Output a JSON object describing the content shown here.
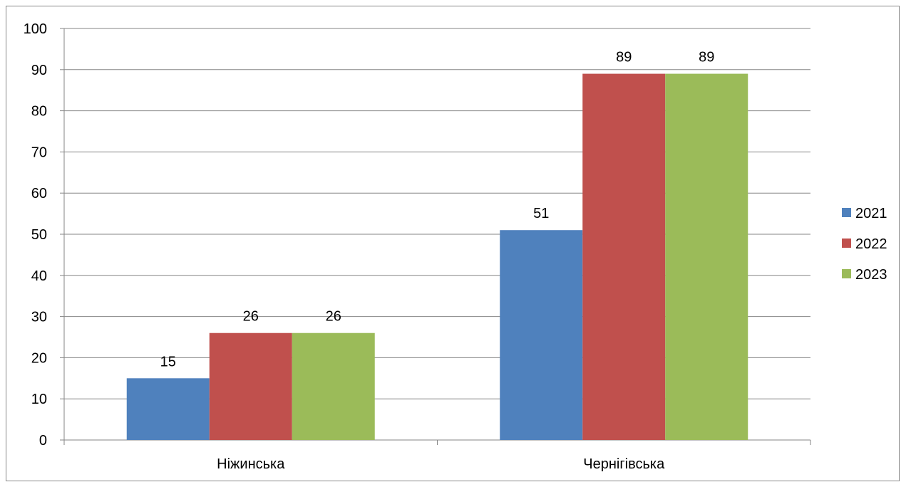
{
  "chart_data": {
    "type": "bar",
    "title": "",
    "xlabel": "",
    "ylabel": "",
    "categories": [
      "Ніжинська",
      "Чернігівська"
    ],
    "series": [
      {
        "name": "2021",
        "values": [
          15,
          51
        ],
        "color": "#4F81BD"
      },
      {
        "name": "2022",
        "values": [
          26,
          89
        ],
        "color": "#C0504D"
      },
      {
        "name": "2023",
        "values": [
          26,
          89
        ],
        "color": "#9BBB59"
      }
    ],
    "ylim": [
      0,
      100
    ],
    "yticks": [
      0,
      10,
      20,
      30,
      40,
      50,
      60,
      70,
      80,
      90,
      100
    ],
    "grid": true,
    "legend_position": "right",
    "data_labels": true
  }
}
